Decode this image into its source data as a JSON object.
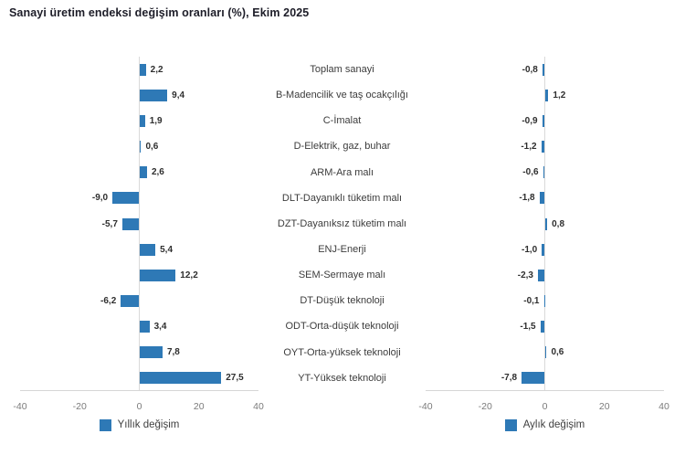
{
  "title": "Sanayi üretim endeksi değişim oranları (%), Ekim 2025",
  "chart_data": {
    "type": "bar",
    "orientation": "horizontal",
    "title": "Sanayi üretim endeksi değişim oranları (%), Ekim 2025",
    "categories": [
      "Toplam sanayi",
      "B-Madencilik ve taş ocakçılığı",
      "C-İmalat",
      "D-Elektrik, gaz, buhar",
      "ARM-Ara malı",
      "DLT-Dayanıklı tüketim malı",
      "DZT-Dayanıksız tüketim malı",
      "ENJ-Enerji",
      "SEM-Sermaye malı",
      "DT-Düşük teknoloji",
      "ODT-Orta-düşük teknoloji",
      "OYT-Orta-yüksek teknoloji",
      "YT-Yüksek teknoloji"
    ],
    "series": [
      {
        "name": "Yıllık değişim",
        "panel": "left",
        "values": [
          2.2,
          9.4,
          1.9,
          0.6,
          2.6,
          -9.0,
          -5.7,
          5.4,
          12.2,
          -6.2,
          3.4,
          7.8,
          27.5
        ],
        "labels": [
          "2,2",
          "9,4",
          "1,9",
          "0,6",
          "2,6",
          "-9,0",
          "-5,7",
          "5,4",
          "12,2",
          "-6,2",
          "3,4",
          "7,8",
          "27,5"
        ]
      },
      {
        "name": "Aylık değişim",
        "panel": "right",
        "values": [
          -0.8,
          1.2,
          -0.9,
          -1.2,
          -0.6,
          -1.8,
          0.8,
          -1.0,
          -2.3,
          -0.1,
          -1.5,
          0.6,
          -7.8
        ],
        "labels": [
          "-0,8",
          "1,2",
          "-0,9",
          "-1,2",
          "-0,6",
          "-1,8",
          "0,8",
          "-1,0",
          "-2,3",
          "-0,1",
          "-1,5",
          "0,6",
          "-7,8"
        ]
      }
    ],
    "xlim": [
      -40,
      40
    ],
    "xticks": [
      "-40",
      "-20",
      "0",
      "20",
      "40"
    ],
    "grid": false,
    "legend_position": "bottom",
    "bar_color": "#2E79B6"
  }
}
